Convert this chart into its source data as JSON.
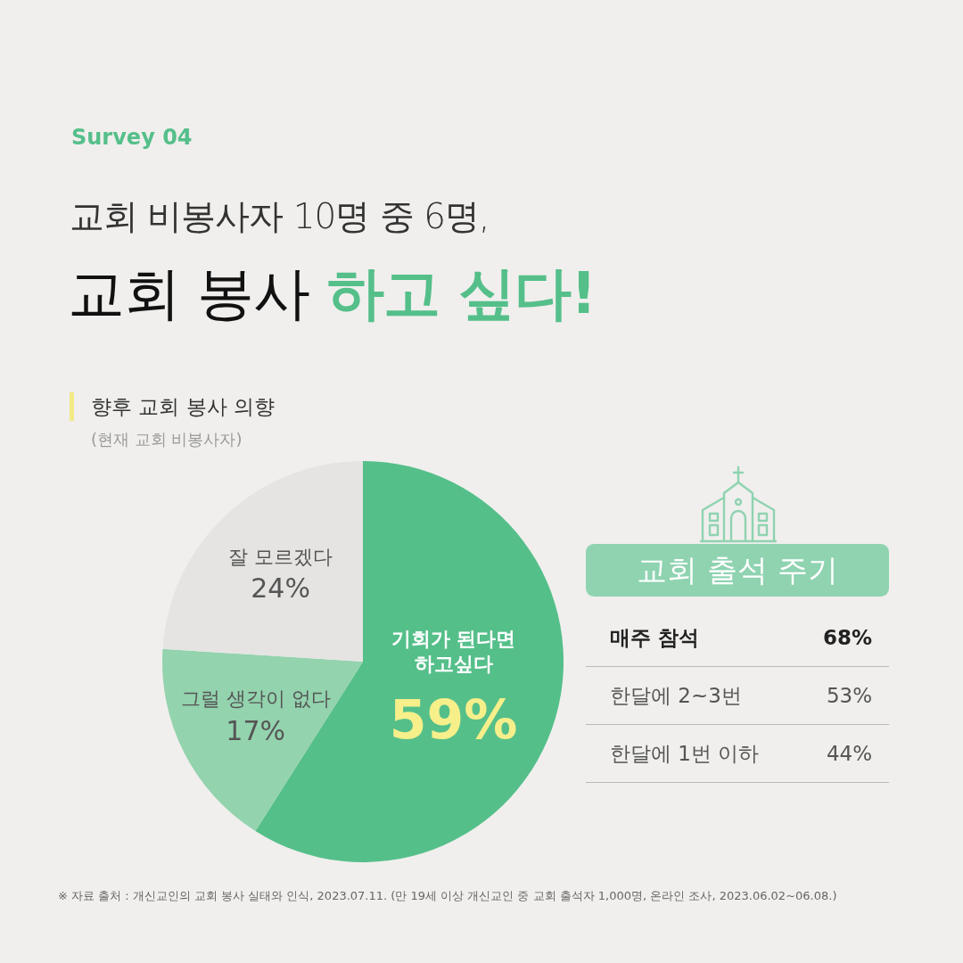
{
  "chart_data": [
    {
      "type": "other",
      "annotations": [
        "Survey 04"
      ],
      "title": "교회 비봉사자 10명 중 6명,",
      "subtitle": "교회 봉사 **하고 싶다!**"
    },
    {
      "type": "pie",
      "title": "향후 교회 봉사 의향",
      "subtitle": "(현재 교회 비봉사자)",
      "categories": [
        "기회가 된다면 하고싶다",
        "그럴 생각이 없다",
        "잘 모르겠다"
      ],
      "values": [
        59,
        17,
        24
      ],
      "colors": [
        "#55bf8a",
        "#93d3ae",
        "#e5e4e3"
      ],
      "value_labels": [
        "59%",
        "17%",
        "24%"
      ],
      "annotations": [
        "※ 자료 출처 : 개신교인의 교회 봉사 실태와 인식, 2023.07.11. (만 19세 이상 개신교인 중 교회 출석자 1,000명, 온라인 조사, 2023.06.02~06.08.)"
      ]
    },
    {
      "type": "other",
      "title": "교회 출석 주기",
      "categories": [
        "매주 참석",
        "한달에 2~3번",
        "한달에 1번 이하"
      ],
      "values": [
        68,
        53,
        44
      ],
      "value_labels": [
        "68%",
        "53%",
        "44%"
      ]
    }
  ]
}
